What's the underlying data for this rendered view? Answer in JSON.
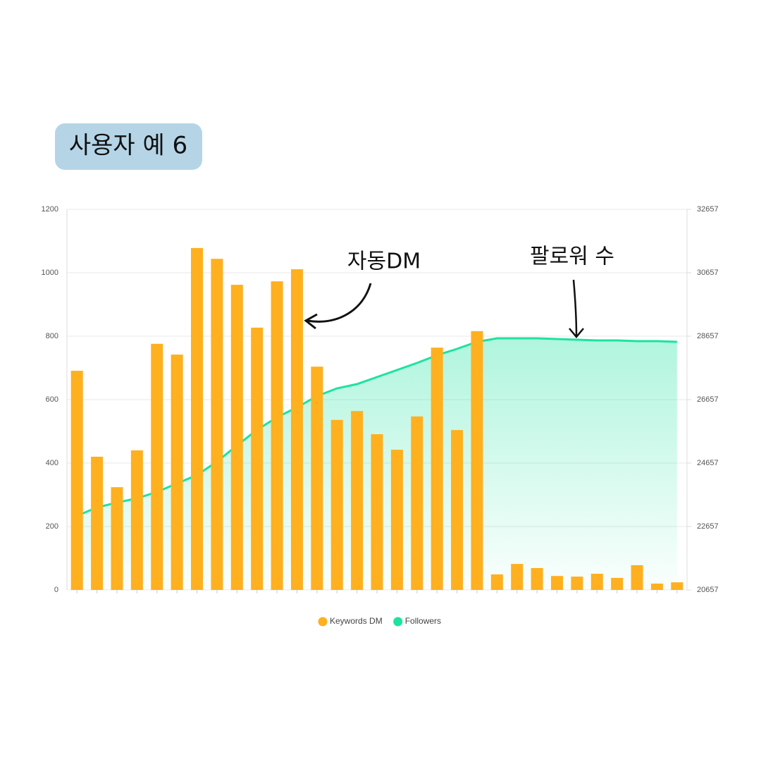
{
  "badge": "사용자 예 6",
  "chart_data": {
    "type": "bar-line",
    "annotations": [
      "자동DM",
      "팔로워 수"
    ],
    "categories": [
      null,
      null,
      null,
      null,
      null,
      null,
      null,
      null,
      null,
      null,
      null,
      null,
      null,
      null,
      null,
      null,
      null,
      null,
      null,
      null,
      null,
      null,
      null,
      null,
      null,
      null,
      null,
      null,
      null,
      null,
      null
    ],
    "series": [
      {
        "name": "Keywords DM",
        "color": "#ffb01f",
        "type": "bar",
        "values": [
          691,
          420,
          324,
          440,
          776,
          742,
          1078,
          1044,
          962,
          827,
          973,
          1011,
          704,
          536,
          564,
          491,
          442,
          547,
          764,
          504,
          816,
          49,
          82,
          69,
          44,
          42,
          51,
          38,
          78,
          20,
          24
        ]
      },
      {
        "name": "Followers",
        "color": "#1de39f",
        "type": "area",
        "axis": "y2",
        "values": [
          22990,
          23257,
          23412,
          23546,
          23746,
          24012,
          24279,
          24701,
          25212,
          25701,
          26101,
          26412,
          26768,
          27012,
          27146,
          27368,
          27590,
          27812,
          28057,
          28257,
          28479,
          28590,
          28590,
          28590,
          28568,
          28546,
          28524,
          28524,
          28501,
          28501,
          28479
        ]
      }
    ],
    "ylim": [
      0,
      1200
    ],
    "yticks": [
      0,
      200,
      400,
      600,
      800,
      1000,
      1200
    ],
    "y2lim": [
      20657,
      32657
    ],
    "y2ticks": [
      20657,
      22657,
      24657,
      26657,
      28657,
      30657,
      32657
    ],
    "grid": true,
    "legend": "bottom"
  }
}
